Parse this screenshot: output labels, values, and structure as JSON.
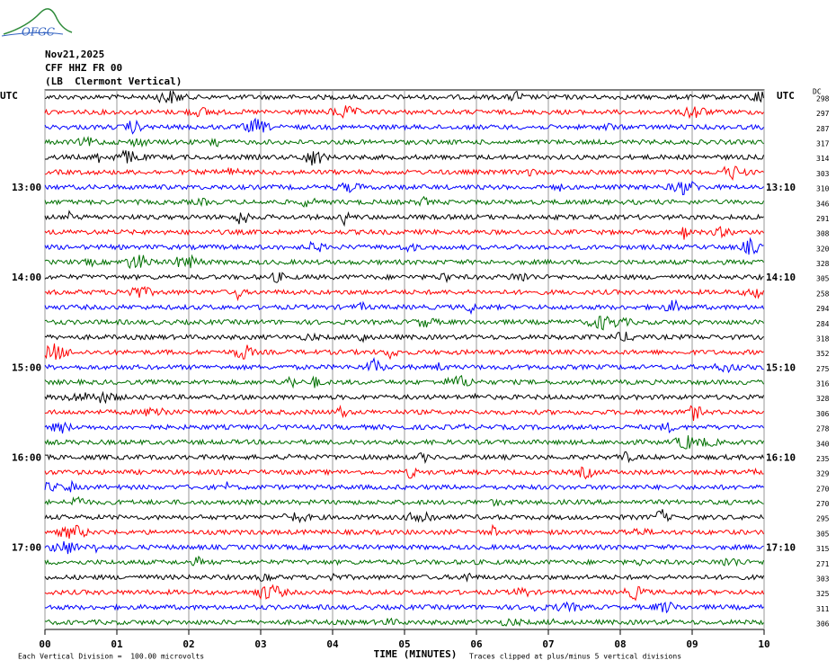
{
  "logo": "OFGC",
  "chart_data": {
    "type": "helicorder",
    "header": [
      "Nov21,2025",
      "CFF HHZ FR 00",
      "(LB  Clermont Vertical)"
    ],
    "left_unit": "UTC",
    "right_unit": "UTC",
    "dc_label": "DC",
    "left_labels": [
      "13:00",
      "14:00",
      "15:00",
      "16:00",
      "17:00"
    ],
    "right_labels": [
      "13:10",
      "14:10",
      "15:10",
      "16:10",
      "17:10"
    ],
    "trace_colors": [
      "#000000",
      "#ff0000",
      "#0000ff",
      "#007000"
    ],
    "dc_values": [
      298,
      297,
      287,
      317,
      314,
      303,
      310,
      346,
      291,
      308,
      320,
      328,
      305,
      258,
      294,
      284,
      318,
      352,
      275,
      316,
      328,
      306,
      278,
      340,
      235,
      329,
      270,
      270,
      295,
      305,
      315,
      271,
      303,
      325,
      311,
      306
    ],
    "xlim": [
      0,
      10
    ],
    "xticks": [
      {
        "value": 0,
        "label": "00"
      },
      {
        "value": 1,
        "label": "01"
      },
      {
        "value": 2,
        "label": "02"
      },
      {
        "value": 3,
        "label": "03"
      },
      {
        "value": 4,
        "label": "04"
      },
      {
        "value": 5,
        "label": "05"
      },
      {
        "value": 6,
        "label": "06"
      },
      {
        "value": 7,
        "label": "07"
      },
      {
        "value": 8,
        "label": "08"
      },
      {
        "value": 9,
        "label": "09"
      },
      {
        "value": 10,
        "label": "10"
      }
    ],
    "xlabel": "TIME (MINUTES)",
    "footer_left": "Each Vertical Division =  100.00 microvolts",
    "footer_right": "Traces clipped at plus/minus 5 vertical divisions",
    "grid": true
  }
}
